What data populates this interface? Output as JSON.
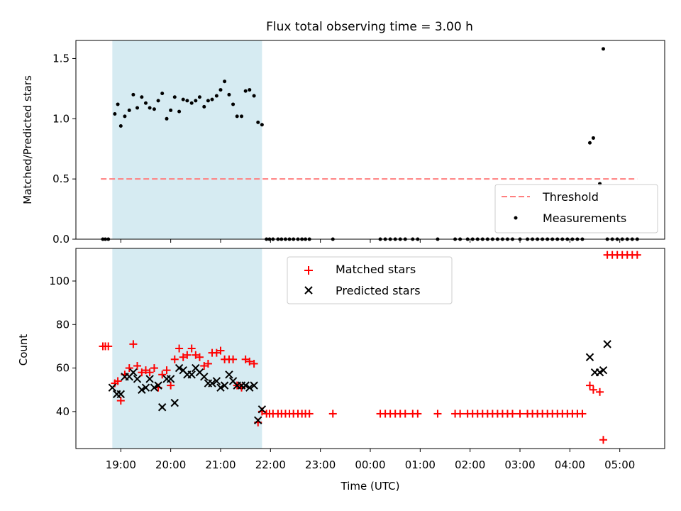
{
  "chart_data": {
    "type": "scatter",
    "title": "Flux total observing time = 3.00 h",
    "xlabel": "Time (UTC)",
    "x_unit": "hours (UTC, wrapping after midnight: 24+ = next day)",
    "x_range": [
      18.1,
      29.9
    ],
    "x_ticks": [
      {
        "value": 19,
        "label": "19:00"
      },
      {
        "value": 20,
        "label": "20:00"
      },
      {
        "value": 21,
        "label": "21:00"
      },
      {
        "value": 22,
        "label": "22:00"
      },
      {
        "value": 23,
        "label": "23:00"
      },
      {
        "value": 24,
        "label": "00:00"
      },
      {
        "value": 25,
        "label": "01:00"
      },
      {
        "value": 26,
        "label": "02:00"
      },
      {
        "value": 27,
        "label": "03:00"
      },
      {
        "value": 28,
        "label": "04:00"
      },
      {
        "value": 29,
        "label": "05:00"
      }
    ],
    "shaded_interval": {
      "x_start": 18.83,
      "x_end": 21.83,
      "color": "#add8e6"
    },
    "top_panel": {
      "ylabel": "Matched/Predicted stars",
      "ylim": [
        0,
        1.65
      ],
      "y_ticks": [
        0.0,
        0.5,
        1.0,
        1.5
      ],
      "y_tick_labels": [
        "0.0",
        "0.5",
        "1.0",
        "1.5"
      ],
      "legend_position": "lower-right",
      "threshold": {
        "name": "Threshold",
        "value": 0.5,
        "x_range": [
          18.6,
          29.35
        ],
        "color": "#ff7f7f",
        "style": "dashed"
      },
      "measurements": {
        "name": "Measurements",
        "color": "#000000",
        "x": [
          18.64,
          18.69,
          18.75,
          18.88,
          18.94,
          19.0,
          19.08,
          19.17,
          19.25,
          19.33,
          19.42,
          19.5,
          19.58,
          19.67,
          19.75,
          19.83,
          19.92,
          20.0,
          20.08,
          20.17,
          20.25,
          20.33,
          20.42,
          20.5,
          20.58,
          20.67,
          20.75,
          20.83,
          20.92,
          21.0,
          21.08,
          21.17,
          21.25,
          21.33,
          21.42,
          21.5,
          21.58,
          21.67,
          21.75,
          21.83,
          21.92,
          21.98,
          22.05,
          22.15,
          22.22,
          22.3,
          22.38,
          22.46,
          22.55,
          22.63,
          22.7,
          22.78,
          23.25,
          24.2,
          24.3,
          24.4,
          24.5,
          24.6,
          24.7,
          24.85,
          24.95,
          25.35,
          25.7,
          25.8,
          25.95,
          26.05,
          26.15,
          26.25,
          26.35,
          26.45,
          26.55,
          26.65,
          26.75,
          26.85,
          27.0,
          27.15,
          27.25,
          27.35,
          27.45,
          27.55,
          27.65,
          27.75,
          27.85,
          27.95,
          28.05,
          28.15,
          28.25,
          28.4,
          28.47,
          28.6,
          28.67,
          28.75,
          28.85,
          28.95,
          29.05,
          29.15,
          29.25,
          29.35
        ],
        "y": [
          0,
          0,
          0,
          1.04,
          1.12,
          0.94,
          1.02,
          1.07,
          1.2,
          1.09,
          1.18,
          1.13,
          1.09,
          1.08,
          1.15,
          1.21,
          1.0,
          1.07,
          1.18,
          1.06,
          1.16,
          1.15,
          1.13,
          1.15,
          1.18,
          1.1,
          1.15,
          1.16,
          1.19,
          1.24,
          1.31,
          1.2,
          1.12,
          1.02,
          1.02,
          1.23,
          1.24,
          1.19,
          0.97,
          0.95,
          0,
          0,
          0,
          0,
          0,
          0,
          0,
          0,
          0,
          0,
          0,
          0,
          0,
          0,
          0,
          0,
          0,
          0,
          0,
          0,
          0,
          0,
          0,
          0,
          0,
          0,
          0,
          0,
          0,
          0,
          0,
          0,
          0,
          0,
          0,
          0,
          0,
          0,
          0,
          0,
          0,
          0,
          0,
          0,
          0,
          0,
          0,
          0.8,
          0.84,
          0.46,
          1.58,
          0,
          0,
          0,
          0,
          0,
          0,
          0
        ]
      }
    },
    "bottom_panel": {
      "ylabel": "Count",
      "ylim": [
        23,
        115
      ],
      "y_ticks": [
        40,
        60,
        80,
        100
      ],
      "y_tick_labels": [
        "40",
        "60",
        "80",
        "100"
      ],
      "legend_position": "upper-center",
      "series": [
        {
          "name": "Matched stars",
          "marker": "plus",
          "color": "#ff0000",
          "x": [
            18.64,
            18.69,
            18.75,
            18.88,
            18.94,
            19.0,
            19.08,
            19.17,
            19.25,
            19.33,
            19.42,
            19.5,
            19.58,
            19.67,
            19.75,
            19.83,
            19.92,
            20.0,
            20.08,
            20.17,
            20.25,
            20.33,
            20.42,
            20.5,
            20.58,
            20.67,
            20.75,
            20.83,
            20.92,
            21.0,
            21.08,
            21.17,
            21.25,
            21.33,
            21.42,
            21.5,
            21.58,
            21.67,
            21.75,
            21.83,
            21.92,
            21.98,
            22.05,
            22.15,
            22.22,
            22.3,
            22.38,
            22.46,
            22.55,
            22.63,
            22.7,
            22.78,
            23.25,
            24.2,
            24.3,
            24.4,
            24.5,
            24.6,
            24.7,
            24.85,
            24.95,
            25.35,
            25.7,
            25.8,
            25.95,
            26.05,
            26.15,
            26.25,
            26.35,
            26.45,
            26.55,
            26.65,
            26.75,
            26.85,
            27.0,
            27.15,
            27.25,
            27.35,
            27.45,
            27.55,
            27.65,
            27.75,
            27.85,
            27.95,
            28.05,
            28.15,
            28.25,
            28.4,
            28.47,
            28.6,
            28.67,
            28.75,
            28.85,
            28.95,
            29.05,
            29.15,
            29.25,
            29.35
          ],
          "y": [
            70,
            70,
            70,
            53,
            54,
            45,
            57,
            60,
            71,
            61,
            58,
            59,
            58,
            60,
            51,
            57,
            59,
            52,
            64,
            69,
            65,
            66,
            69,
            66,
            65,
            61,
            62,
            67,
            67,
            68,
            64,
            64,
            64,
            52,
            51,
            64,
            63,
            62,
            35,
            40,
            39,
            39,
            39,
            39,
            39,
            39,
            39,
            39,
            39,
            39,
            39,
            39,
            39,
            39,
            39,
            39,
            39,
            39,
            39,
            39,
            39,
            39,
            39,
            39,
            39,
            39,
            39,
            39,
            39,
            39,
            39,
            39,
            39,
            39,
            39,
            39,
            39,
            39,
            39,
            39,
            39,
            39,
            39,
            39,
            39,
            39,
            39,
            52,
            50,
            49,
            27,
            112,
            112,
            112,
            112,
            112,
            112,
            112
          ]
        },
        {
          "name": "Predicted stars",
          "marker": "x",
          "color": "#000000",
          "x": [
            18.83,
            18.92,
            19.0,
            19.08,
            19.17,
            19.25,
            19.33,
            19.42,
            19.5,
            19.58,
            19.67,
            19.75,
            19.83,
            19.92,
            20.0,
            20.08,
            20.17,
            20.25,
            20.33,
            20.42,
            20.5,
            20.58,
            20.67,
            20.75,
            20.83,
            20.92,
            21.0,
            21.08,
            21.17,
            21.25,
            21.33,
            21.42,
            21.5,
            21.58,
            21.67,
            21.75,
            21.83,
            28.4,
            28.5,
            28.6,
            28.67,
            28.75
          ],
          "y": [
            51,
            48,
            48,
            56,
            56,
            58,
            55,
            50,
            51,
            55,
            51,
            52,
            42,
            55,
            55,
            44,
            60,
            59,
            57,
            57,
            60,
            58,
            56,
            53,
            53,
            54,
            51,
            52,
            57,
            54,
            52,
            52,
            52,
            51,
            52,
            36,
            41,
            65,
            58,
            58,
            59,
            71
          ]
        }
      ]
    }
  }
}
